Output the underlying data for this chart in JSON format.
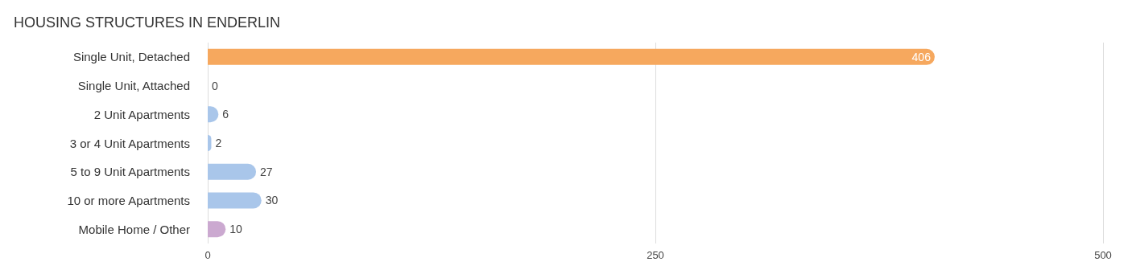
{
  "chart_data": {
    "type": "bar",
    "title": "HOUSING STRUCTURES IN ENDERLIN",
    "orientation": "horizontal",
    "categories": [
      "Single Unit, Detached",
      "Single Unit, Attached",
      "2 Unit Apartments",
      "3 or 4 Unit Apartments",
      "5 to 9 Unit Apartments",
      "10 or more Apartments",
      "Mobile Home / Other"
    ],
    "values": [
      406,
      0,
      6,
      2,
      27,
      30,
      10
    ],
    "colors": [
      "#f6a85e",
      "#f2a9a9",
      "#a9c6ea",
      "#a9c6ea",
      "#a9c6ea",
      "#a9c6ea",
      "#cba9d0"
    ],
    "xlim": [
      0,
      500
    ],
    "xticks": [
      0,
      250,
      500
    ],
    "grid": "x",
    "data_labels": true
  }
}
